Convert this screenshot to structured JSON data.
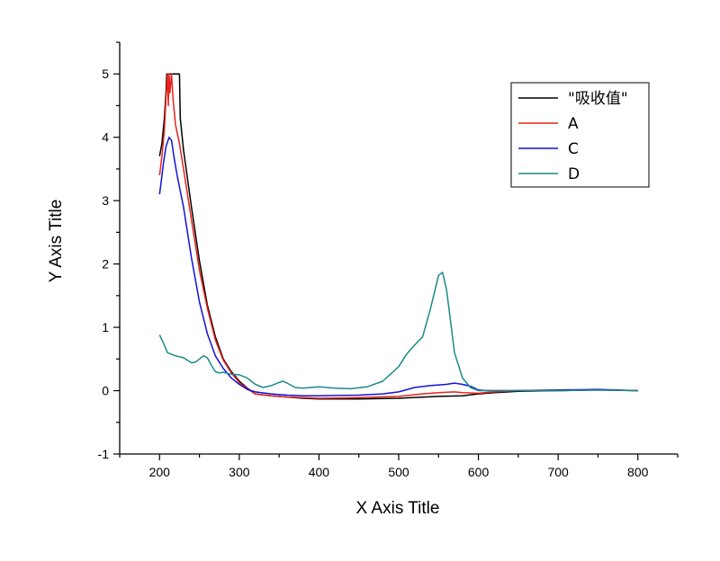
{
  "chart_data": {
    "type": "line",
    "title": "",
    "xlabel": "X Axis Title",
    "ylabel": "Y Axis Title",
    "xlim": [
      150,
      850
    ],
    "ylim": [
      -1,
      5.5
    ],
    "x_ticks": [
      200,
      300,
      400,
      500,
      600,
      700,
      800
    ],
    "y_ticks": [
      -1,
      0,
      1,
      2,
      3,
      4,
      5
    ],
    "grid": false,
    "legend_position": "top-right",
    "series": [
      {
        "name": "\"吸收值\"",
        "color": "#000000",
        "points": [
          [
            200,
            3.7
          ],
          [
            203,
            3.9
          ],
          [
            206,
            4.3
          ],
          [
            208,
            4.7
          ],
          [
            209,
            5.0
          ],
          [
            212,
            5.0
          ],
          [
            215,
            5.0
          ],
          [
            220,
            5.0
          ],
          [
            225,
            5.0
          ],
          [
            226,
            4.3
          ],
          [
            230,
            3.8
          ],
          [
            240,
            2.9
          ],
          [
            250,
            2.05
          ],
          [
            260,
            1.35
          ],
          [
            270,
            0.85
          ],
          [
            280,
            0.5
          ],
          [
            290,
            0.3
          ],
          [
            300,
            0.15
          ],
          [
            310,
            0.04
          ],
          [
            320,
            -0.05
          ],
          [
            340,
            -0.08
          ],
          [
            360,
            -0.1
          ],
          [
            380,
            -0.12
          ],
          [
            400,
            -0.13
          ],
          [
            450,
            -0.13
          ],
          [
            500,
            -0.12
          ],
          [
            550,
            -0.09
          ],
          [
            580,
            -0.08
          ],
          [
            600,
            -0.05
          ],
          [
            620,
            -0.03
          ],
          [
            650,
            -0.01
          ],
          [
            700,
            0.0
          ],
          [
            750,
            0.01
          ],
          [
            800,
            0.0
          ]
        ]
      },
      {
        "name": "A",
        "color": "#e8221c",
        "points": [
          [
            200,
            3.4
          ],
          [
            203,
            3.7
          ],
          [
            206,
            4.1
          ],
          [
            208,
            4.6
          ],
          [
            210,
            5.0
          ],
          [
            211,
            4.5
          ],
          [
            212,
            5.0
          ],
          [
            213,
            4.7
          ],
          [
            215,
            5.0
          ],
          [
            217,
            4.6
          ],
          [
            220,
            4.2
          ],
          [
            225,
            3.9
          ],
          [
            230,
            3.5
          ],
          [
            240,
            2.7
          ],
          [
            250,
            1.9
          ],
          [
            260,
            1.3
          ],
          [
            270,
            0.8
          ],
          [
            280,
            0.48
          ],
          [
            290,
            0.28
          ],
          [
            300,
            0.13
          ],
          [
            310,
            0.03
          ],
          [
            320,
            -0.05
          ],
          [
            340,
            -0.08
          ],
          [
            360,
            -0.1
          ],
          [
            380,
            -0.11
          ],
          [
            400,
            -0.12
          ],
          [
            450,
            -0.11
          ],
          [
            500,
            -0.09
          ],
          [
            530,
            -0.05
          ],
          [
            550,
            -0.03
          ],
          [
            570,
            -0.02
          ],
          [
            580,
            -0.03
          ],
          [
            600,
            -0.04
          ],
          [
            620,
            -0.02
          ],
          [
            650,
            0.0
          ],
          [
            700,
            0.0
          ],
          [
            750,
            0.01
          ],
          [
            800,
            0.0
          ]
        ]
      },
      {
        "name": "C",
        "color": "#1111dd",
        "points": [
          [
            200,
            3.1
          ],
          [
            202,
            3.3
          ],
          [
            205,
            3.6
          ],
          [
            208,
            3.85
          ],
          [
            212,
            4.0
          ],
          [
            215,
            3.95
          ],
          [
            218,
            3.7
          ],
          [
            222,
            3.4
          ],
          [
            230,
            2.9
          ],
          [
            240,
            2.1
          ],
          [
            250,
            1.4
          ],
          [
            260,
            0.9
          ],
          [
            270,
            0.55
          ],
          [
            280,
            0.35
          ],
          [
            290,
            0.2
          ],
          [
            300,
            0.1
          ],
          [
            310,
            0.02
          ],
          [
            320,
            -0.02
          ],
          [
            340,
            -0.05
          ],
          [
            360,
            -0.07
          ],
          [
            380,
            -0.08
          ],
          [
            400,
            -0.08
          ],
          [
            450,
            -0.07
          ],
          [
            480,
            -0.05
          ],
          [
            500,
            -0.02
          ],
          [
            520,
            0.05
          ],
          [
            540,
            0.08
          ],
          [
            560,
            0.1
          ],
          [
            570,
            0.12
          ],
          [
            580,
            0.1
          ],
          [
            590,
            0.07
          ],
          [
            600,
            0.01
          ],
          [
            610,
            0.0
          ],
          [
            650,
            0.0
          ],
          [
            700,
            0.01
          ],
          [
            750,
            0.02
          ],
          [
            800,
            0.0
          ]
        ]
      },
      {
        "name": "D",
        "color": "#1a8a88",
        "points": [
          [
            200,
            0.88
          ],
          [
            205,
            0.75
          ],
          [
            210,
            0.6
          ],
          [
            220,
            0.55
          ],
          [
            230,
            0.52
          ],
          [
            240,
            0.44
          ],
          [
            245,
            0.45
          ],
          [
            250,
            0.5
          ],
          [
            255,
            0.55
          ],
          [
            260,
            0.52
          ],
          [
            265,
            0.4
          ],
          [
            270,
            0.3
          ],
          [
            275,
            0.28
          ],
          [
            280,
            0.29
          ],
          [
            290,
            0.26
          ],
          [
            300,
            0.25
          ],
          [
            310,
            0.2
          ],
          [
            320,
            0.1
          ],
          [
            330,
            0.05
          ],
          [
            340,
            0.08
          ],
          [
            350,
            0.13
          ],
          [
            355,
            0.15
          ],
          [
            360,
            0.12
          ],
          [
            370,
            0.05
          ],
          [
            380,
            0.04
          ],
          [
            400,
            0.06
          ],
          [
            420,
            0.04
          ],
          [
            440,
            0.03
          ],
          [
            460,
            0.06
          ],
          [
            480,
            0.15
          ],
          [
            500,
            0.38
          ],
          [
            510,
            0.58
          ],
          [
            520,
            0.72
          ],
          [
            530,
            0.85
          ],
          [
            540,
            1.3
          ],
          [
            550,
            1.82
          ],
          [
            555,
            1.87
          ],
          [
            560,
            1.6
          ],
          [
            565,
            1.1
          ],
          [
            570,
            0.6
          ],
          [
            580,
            0.2
          ],
          [
            590,
            0.05
          ],
          [
            600,
            0.0
          ],
          [
            650,
            0.0
          ],
          [
            700,
            0.0
          ],
          [
            750,
            0.01
          ],
          [
            800,
            0.0
          ]
        ]
      }
    ]
  }
}
